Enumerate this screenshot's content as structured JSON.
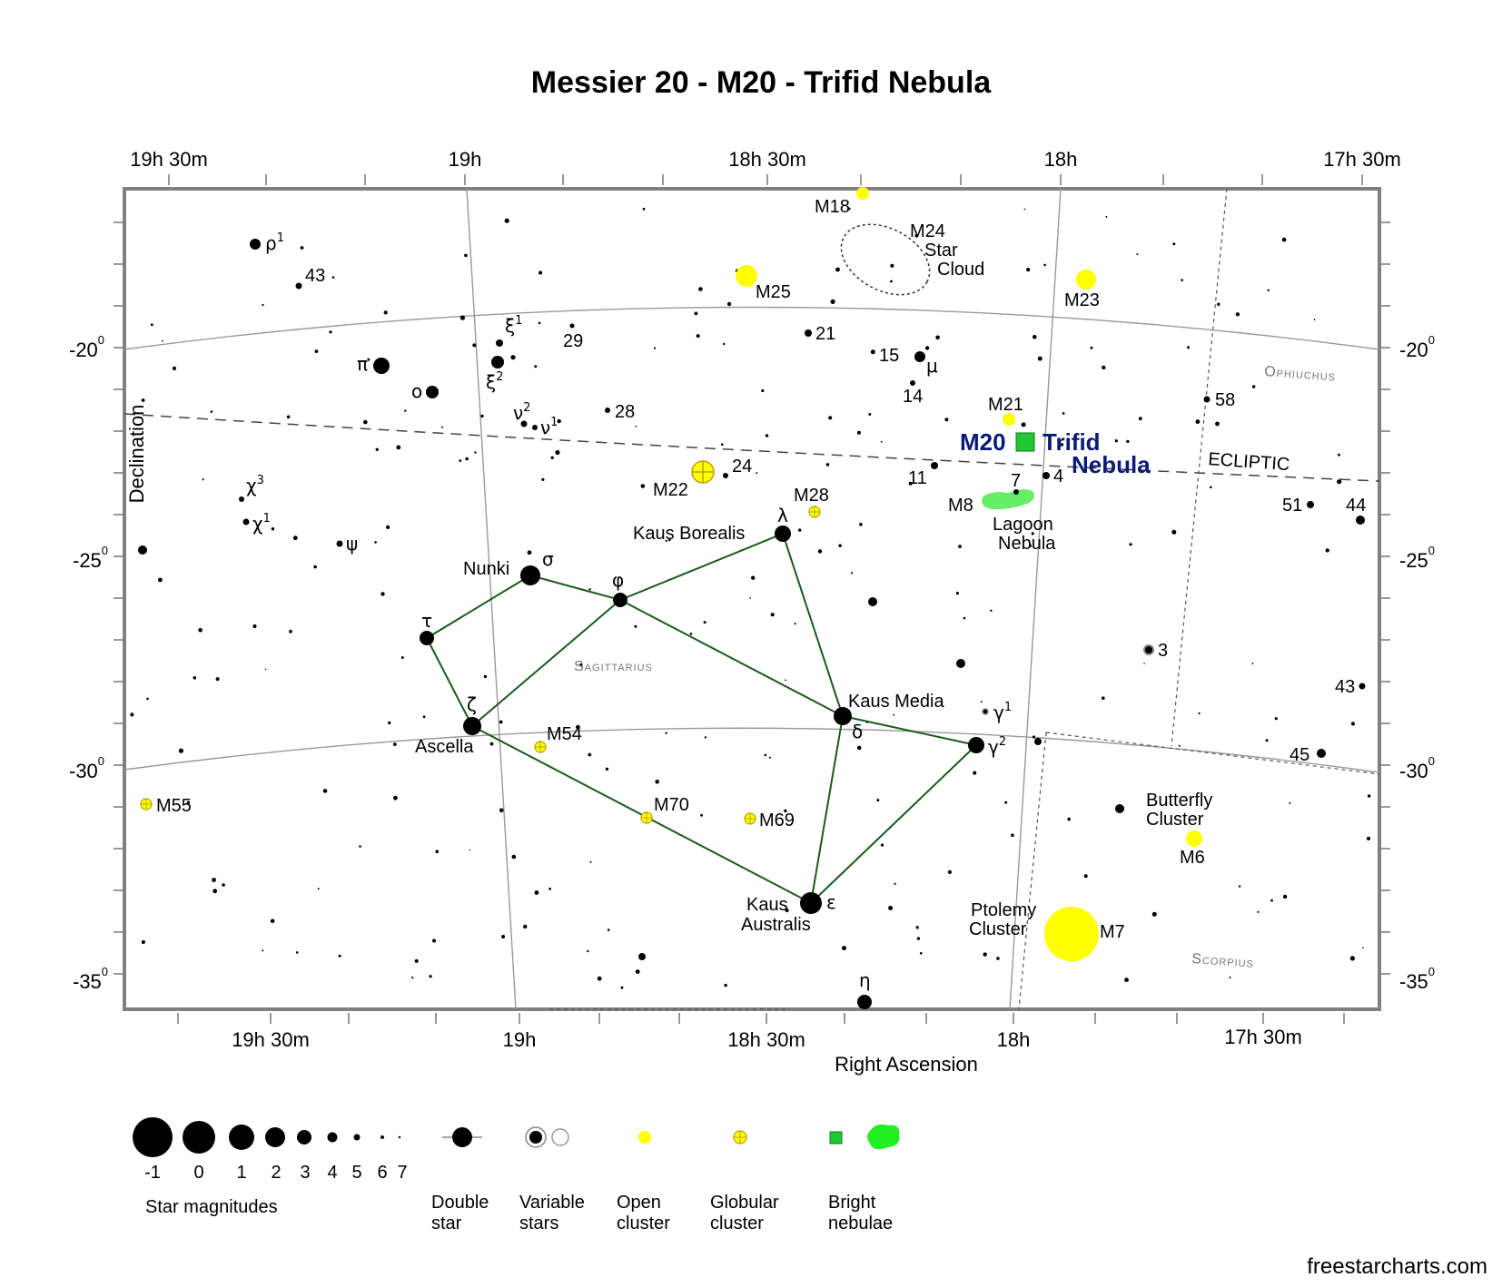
{
  "title": "Messier 20 - M20 - Trifid Nebula",
  "credit": "freestarcharts.com",
  "axes": {
    "x_label": "Right Ascension",
    "y_label": "Declination",
    "top_ra_ticks": [
      "19h 30m",
      "19h",
      "18h 30m",
      "18h",
      "17h 30m"
    ],
    "bottom_ra_ticks": [
      "19h 30m",
      "19h",
      "18h 30m",
      "18h",
      "17h 30m"
    ],
    "dec_ticks": [
      {
        "value": "-20",
        "sup": "0"
      },
      {
        "value": "-25",
        "sup": "0"
      },
      {
        "value": "-30",
        "sup": "0"
      },
      {
        "value": "-35",
        "sup": "0"
      }
    ]
  },
  "ecliptic_label": "ECLIPTIC",
  "constellations": [
    "Ophiuchus",
    "Sagittarius",
    "Scorpius"
  ],
  "highlight": {
    "name": "M20",
    "label_line1": "Trifid",
    "label_line2": "Nebula",
    "color": "#22c833"
  },
  "colors": {
    "open_cluster": "#ffff00",
    "nebula": "#33dd33",
    "lines": "#1a5a1a",
    "highlight_text": "#0a1a7a"
  },
  "stars": [
    {
      "label": "σ",
      "text": "Nunki"
    },
    {
      "label": "φ",
      "text": ""
    },
    {
      "label": "λ",
      "text": "Kaus Borealis"
    },
    {
      "label": "τ",
      "text": ""
    },
    {
      "label": "ζ",
      "text": "Ascella"
    },
    {
      "label": "δ",
      "text": "Kaus Media"
    },
    {
      "label": "ε",
      "text": "Kaus Australis"
    },
    {
      "label": "γ2",
      "text": ""
    },
    {
      "label": "γ1",
      "text": ""
    },
    {
      "label": "η",
      "text": ""
    },
    {
      "label": "π",
      "text": ""
    },
    {
      "label": "ο",
      "text": ""
    },
    {
      "label": "ξ1",
      "text": ""
    },
    {
      "label": "ξ2",
      "text": ""
    },
    {
      "label": "ν2",
      "text": ""
    },
    {
      "label": "ν1",
      "text": ""
    },
    {
      "label": "ρ1",
      "text": ""
    },
    {
      "label": "χ3",
      "text": ""
    },
    {
      "label": "χ1",
      "text": ""
    },
    {
      "label": "ψ",
      "text": ""
    },
    {
      "label": "μ",
      "text": ""
    }
  ],
  "flamsteed": [
    "43",
    "29",
    "28",
    "24",
    "21",
    "15",
    "14",
    "11",
    "7",
    "4",
    "58",
    "51",
    "44",
    "3",
    "43",
    "45"
  ],
  "deep_sky": [
    {
      "name": "M18",
      "type": "open cluster"
    },
    {
      "name": "M24",
      "text": "Star Cloud",
      "type": "star cloud"
    },
    {
      "name": "M25",
      "type": "open cluster"
    },
    {
      "name": "M23",
      "type": "open cluster"
    },
    {
      "name": "M21",
      "type": "open cluster"
    },
    {
      "name": "M22",
      "type": "globular cluster"
    },
    {
      "name": "M28",
      "type": "globular cluster"
    },
    {
      "name": "M8",
      "text": "Lagoon Nebula",
      "type": "bright nebula"
    },
    {
      "name": "M54",
      "type": "globular cluster"
    },
    {
      "name": "M55",
      "type": "globular cluster"
    },
    {
      "name": "M70",
      "type": "globular cluster"
    },
    {
      "name": "M69",
      "type": "globular cluster"
    },
    {
      "name": "M6",
      "text": "Butterfly Cluster",
      "type": "open cluster"
    },
    {
      "name": "M7",
      "text": "Ptolemy Cluster",
      "type": "open cluster"
    }
  ],
  "legend": {
    "magnitudes": [
      "-1",
      "0",
      "1",
      "2",
      "3",
      "4",
      "5",
      "6",
      "7"
    ],
    "magnitudes_title": "Star magnitudes",
    "double_star": [
      "Double",
      "star"
    ],
    "variable_stars": [
      "Variable",
      "stars"
    ],
    "open_cluster": [
      "Open",
      "cluster"
    ],
    "globular_cluster": [
      "Globular",
      "cluster"
    ],
    "bright_nebulae": [
      "Bright",
      "nebulae"
    ]
  }
}
